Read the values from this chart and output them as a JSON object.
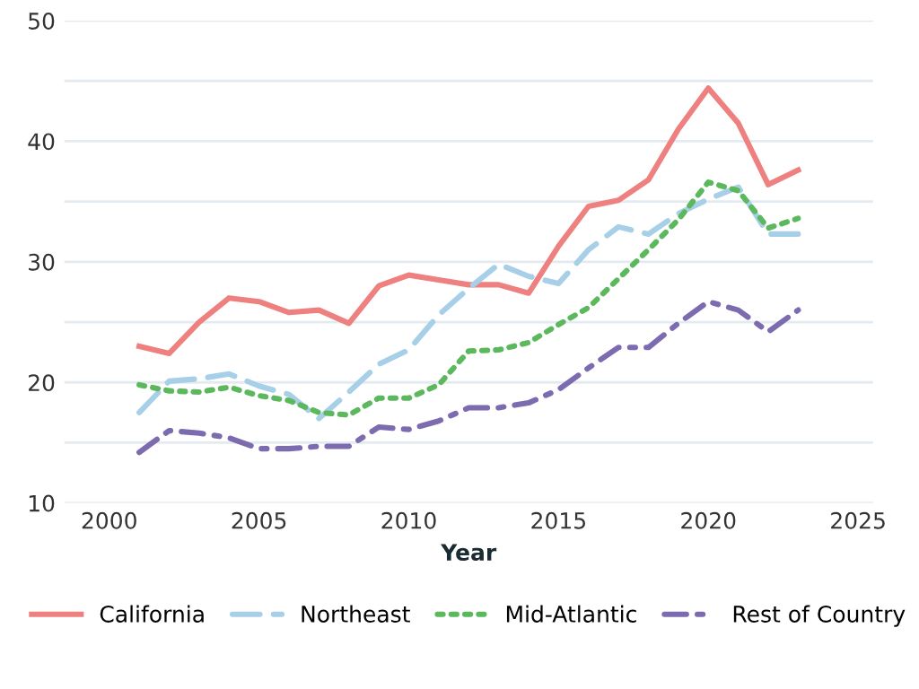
{
  "chart_data": {
    "type": "line",
    "xlabel": "Year",
    "x": [
      2001,
      2002,
      2003,
      2004,
      2005,
      2006,
      2007,
      2008,
      2009,
      2010,
      2011,
      2012,
      2013,
      2014,
      2015,
      2016,
      2017,
      2018,
      2019,
      2020,
      2021,
      2022,
      2023
    ],
    "series": [
      {
        "name": "California",
        "color": "#ef8080",
        "line_style": "solid",
        "values": [
          23,
          22.4,
          25,
          27,
          26.7,
          25.8,
          26,
          24.9,
          28,
          28.9,
          28.5,
          28.1,
          28.1,
          27.4,
          31.3,
          34.6,
          35.1,
          36.8,
          41,
          44.4,
          41.5,
          36.4,
          37.6
        ]
      },
      {
        "name": "Northeast",
        "color": "#a8cfe8",
        "line_style": "dashed",
        "values": [
          17.5,
          20.1,
          20.3,
          20.7,
          19.7,
          19,
          17,
          19.2,
          21.5,
          22.7,
          25.6,
          27.8,
          29.8,
          28.8,
          28.2,
          31,
          32.9,
          32.3,
          34,
          35.2,
          36.2,
          32.3,
          32.3
        ]
      },
      {
        "name": "Mid-Atlantic",
        "color": "#5cb85c",
        "line_style": "dotted",
        "values": [
          19.8,
          19.3,
          19.2,
          19.6,
          18.9,
          18.5,
          17.5,
          17.3,
          18.7,
          18.7,
          19.8,
          22.6,
          22.7,
          23.3,
          24.8,
          26.2,
          28.6,
          31,
          33.5,
          36.6,
          35.9,
          32.8,
          33.6
        ]
      },
      {
        "name": "Rest of Country",
        "color": "#7d6bb0",
        "line_style": "dashdot",
        "values": [
          14.2,
          16,
          15.8,
          15.4,
          14.5,
          14.5,
          14.7,
          14.7,
          16.3,
          16.1,
          16.8,
          17.9,
          17.9,
          18.3,
          19.4,
          21.2,
          22.9,
          22.9,
          24.9,
          26.7,
          26,
          24.2,
          26
        ]
      }
    ],
    "xlim": [
      1998.5,
      2025.5
    ],
    "xticks": [
      2000,
      2005,
      2010,
      2015,
      2020,
      2025
    ],
    "ylim": [
      10,
      50
    ],
    "yticks": [
      10,
      {
        "value": 15,
        "label": null
      },
      20,
      {
        "value": 25,
        "label": null
      },
      30,
      {
        "value": 35,
        "label": null
      },
      40,
      {
        "value": 45,
        "label": null
      },
      50
    ],
    "grid": "y",
    "legend": "bottom",
    "marker": "none"
  }
}
